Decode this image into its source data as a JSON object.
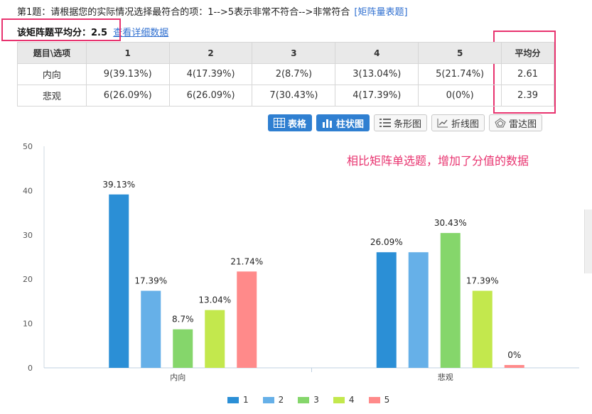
{
  "question": {
    "title": "第1题：请根据您的实际情况选择最符合的项：1-->5表示非常不符合-->非常符合",
    "type_label": "[矩阵量表题]"
  },
  "average": {
    "label": "该矩阵题平均分：",
    "value": "2.5",
    "detail_link": "查看详细数据"
  },
  "table": {
    "headers": [
      "题目\\选项",
      "1",
      "2",
      "3",
      "4",
      "5",
      "平均分"
    ],
    "rows": [
      [
        "内向",
        "9(39.13%)",
        "4(17.39%)",
        "2(8.7%)",
        "3(13.04%)",
        "5(21.74%)",
        "2.61"
      ],
      [
        "悲观",
        "6(26.09%)",
        "6(26.09%)",
        "7(30.43%)",
        "4(17.39%)",
        "0(0%)",
        "2.39"
      ]
    ]
  },
  "toolbar": {
    "buttons": [
      {
        "label": "表格",
        "icon": "table-icon",
        "active": true
      },
      {
        "label": "柱状图",
        "icon": "bar-chart-icon",
        "active": true
      },
      {
        "label": "条形图",
        "icon": "list-icon",
        "active": false
      },
      {
        "label": "折线图",
        "icon": "line-chart-icon",
        "active": false
      },
      {
        "label": "雷达图",
        "icon": "radar-icon",
        "active": false
      }
    ]
  },
  "annotation": "相比矩阵单选题，增加了分值的数据",
  "colors": {
    "highlight": "#e8336f",
    "link": "#2f6fd0",
    "active_button": "#2f7fd1"
  },
  "chart_data": {
    "type": "bar",
    "categories": [
      "内向",
      "悲观"
    ],
    "series": [
      {
        "name": "1",
        "values": [
          39.13,
          26.09
        ],
        "labels": [
          "39.13%",
          "26.09%"
        ],
        "color": "#2b8fd6"
      },
      {
        "name": "2",
        "values": [
          17.39,
          26.09
        ],
        "labels": [
          "17.39%",
          ""
        ],
        "color": "#66b0e8"
      },
      {
        "name": "3",
        "values": [
          8.7,
          30.43
        ],
        "labels": [
          "8.7%",
          "30.43%"
        ],
        "color": "#85d66b"
      },
      {
        "name": "4",
        "values": [
          13.04,
          17.39
        ],
        "labels": [
          "13.04%",
          "17.39%"
        ],
        "color": "#c3e84d"
      },
      {
        "name": "5",
        "values": [
          21.74,
          0
        ],
        "labels": [
          "21.74%",
          "0%"
        ],
        "color": "#ff8a8a"
      }
    ],
    "yticks": [
      "0",
      "10",
      "20",
      "30",
      "40",
      "50"
    ],
    "ylim": [
      0,
      50
    ],
    "grid": false,
    "legend": "bottom-center"
  }
}
